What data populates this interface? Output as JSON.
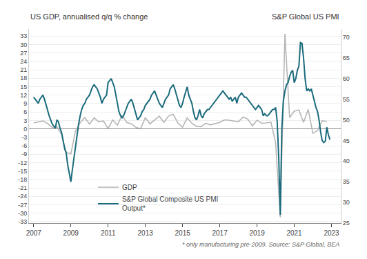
{
  "chart_data": {
    "type": "line",
    "ylabel": "US GDP, annualised q/q % change",
    "y2label": "S&P Global US PMI",
    "annotations": [
      "* only manufacturing pre-2009. Source: S&P Global, BEA"
    ],
    "xlim": [
      2006.75,
      2023.5
    ],
    "xticks": [
      2007,
      2009,
      2011,
      2013,
      2015,
      2017,
      2019,
      2021,
      2023
    ],
    "ylim": [
      -33.5,
      35.5
    ],
    "yticks": [
      -33,
      -30,
      -27,
      -24,
      -21,
      -18,
      -15,
      -12,
      -9,
      -6,
      -3,
      0,
      3,
      6,
      9,
      12,
      15,
      18,
      21,
      24,
      27,
      30,
      33
    ],
    "y2lim": [
      25,
      72
    ],
    "y2ticks": [
      25,
      30,
      35,
      40,
      45,
      50,
      55,
      60,
      65,
      70
    ],
    "grid": true,
    "legend": "lower left",
    "series": [
      {
        "name": "GDP",
        "color": "#b5b5b5",
        "x": [
          2007.0,
          2007.25,
          2007.5,
          2007.75,
          2008.0,
          2008.25,
          2008.5,
          2008.75,
          2009.0,
          2009.25,
          2009.5,
          2009.75,
          2010.0,
          2010.25,
          2010.5,
          2010.75,
          2011.0,
          2011.25,
          2011.5,
          2011.75,
          2012.0,
          2012.25,
          2012.5,
          2012.75,
          2013.0,
          2013.25,
          2013.5,
          2013.75,
          2014.0,
          2014.25,
          2014.5,
          2014.75,
          2015.0,
          2015.25,
          2015.5,
          2015.75,
          2016.0,
          2016.25,
          2016.5,
          2016.75,
          2017.0,
          2017.25,
          2017.5,
          2017.75,
          2018.0,
          2018.25,
          2018.5,
          2018.75,
          2019.0,
          2019.25,
          2019.5,
          2019.75,
          2020.0,
          2020.25,
          2020.5,
          2020.75,
          2021.0,
          2021.25,
          2021.5,
          2021.75,
          2022.0,
          2022.25,
          2022.5,
          2022.75
        ],
        "values": [
          2.1,
          2.5,
          2.8,
          1.9,
          0.5,
          0.7,
          -2.0,
          -8.4,
          -8.9,
          -0.7,
          2.2,
          4.0,
          1.7,
          3.9,
          2.5,
          2.8,
          0.1,
          3.2,
          1.3,
          4.9,
          2.3,
          1.8,
          0.5,
          0.1,
          4.0,
          1.8,
          3.2,
          4.5,
          2.3,
          4.6,
          5.2,
          2.1,
          0.6,
          3.9,
          2.0,
          0.9,
          0.8,
          2.0,
          1.4,
          1.9,
          2.3,
          3.2,
          3.1,
          2.8,
          2.5,
          4.2,
          3.5,
          1.1,
          3.1,
          2.0,
          2.1,
          2.4,
          -5.0,
          -31.4,
          33.8,
          4.0,
          6.3,
          6.7,
          2.3,
          6.9,
          -1.6,
          -0.6,
          2.9,
          2.6
        ]
      },
      {
        "name": "S&P Global Composite US PMI\nOutput*",
        "color": "#1a6b7c",
        "axis": "y2",
        "x": [
          2007.0,
          2007.083,
          2007.167,
          2007.25,
          2007.333,
          2007.417,
          2007.5,
          2007.583,
          2007.667,
          2007.75,
          2007.833,
          2007.917,
          2008.0,
          2008.083,
          2008.167,
          2008.25,
          2008.333,
          2008.417,
          2008.5,
          2008.583,
          2008.667,
          2008.75,
          2008.833,
          2008.917,
          2009.0,
          2009.083,
          2009.167,
          2009.25,
          2009.333,
          2009.417,
          2009.5,
          2009.583,
          2009.667,
          2009.75,
          2009.833,
          2009.917,
          2010.0,
          2010.083,
          2010.167,
          2010.25,
          2010.333,
          2010.417,
          2010.5,
          2010.583,
          2010.667,
          2010.75,
          2010.833,
          2010.917,
          2011.0,
          2011.083,
          2011.167,
          2011.25,
          2011.333,
          2011.417,
          2011.5,
          2011.583,
          2011.667,
          2011.75,
          2011.833,
          2011.917,
          2012.0,
          2012.083,
          2012.167,
          2012.25,
          2012.333,
          2012.417,
          2012.5,
          2012.583,
          2012.667,
          2012.75,
          2012.833,
          2012.917,
          2013.0,
          2013.083,
          2013.167,
          2013.25,
          2013.333,
          2013.417,
          2013.5,
          2013.583,
          2013.667,
          2013.75,
          2013.833,
          2013.917,
          2014.0,
          2014.083,
          2014.167,
          2014.25,
          2014.333,
          2014.417,
          2014.5,
          2014.583,
          2014.667,
          2014.75,
          2014.833,
          2014.917,
          2015.0,
          2015.083,
          2015.167,
          2015.25,
          2015.333,
          2015.417,
          2015.5,
          2015.583,
          2015.667,
          2015.75,
          2015.833,
          2015.917,
          2016.0,
          2016.083,
          2016.167,
          2016.25,
          2016.333,
          2016.417,
          2016.5,
          2016.583,
          2016.667,
          2016.75,
          2016.833,
          2016.917,
          2017.0,
          2017.083,
          2017.167,
          2017.25,
          2017.333,
          2017.417,
          2017.5,
          2017.583,
          2017.667,
          2017.75,
          2017.833,
          2017.917,
          2018.0,
          2018.083,
          2018.167,
          2018.25,
          2018.333,
          2018.417,
          2018.5,
          2018.583,
          2018.667,
          2018.75,
          2018.833,
          2018.917,
          2019.0,
          2019.083,
          2019.167,
          2019.25,
          2019.333,
          2019.417,
          2019.5,
          2019.583,
          2019.667,
          2019.75,
          2019.833,
          2019.917,
          2020.0,
          2020.083,
          2020.167,
          2020.25,
          2020.333,
          2020.417,
          2020.5,
          2020.583,
          2020.667,
          2020.75,
          2020.833,
          2020.917,
          2021.0,
          2021.083,
          2021.167,
          2021.25,
          2021.333,
          2021.417,
          2021.5,
          2021.583,
          2021.667,
          2021.75,
          2021.833,
          2021.917,
          2022.0,
          2022.083,
          2022.167,
          2022.25,
          2022.333,
          2022.417,
          2022.5,
          2022.583,
          2022.667,
          2022.75,
          2022.833,
          2022.917
        ],
        "values": [
          55.5,
          55.0,
          54.5,
          54.0,
          55.0,
          55.5,
          56.0,
          55.0,
          53.5,
          52.5,
          51.0,
          50.0,
          49.0,
          48.5,
          48.0,
          50.0,
          49.5,
          48.0,
          47.0,
          45.0,
          43.0,
          42.0,
          39.0,
          37.0,
          35.0,
          38.0,
          41.0,
          44.0,
          46.5,
          49.0,
          51.0,
          52.5,
          53.5,
          54.0,
          55.0,
          55.5,
          56.0,
          57.0,
          58.0,
          58.5,
          58.0,
          57.5,
          56.5,
          55.5,
          54.0,
          55.0,
          55.5,
          56.0,
          59.0,
          59.5,
          60.0,
          59.0,
          58.0,
          56.0,
          54.0,
          52.0,
          51.0,
          50.5,
          51.0,
          52.0,
          53.0,
          54.0,
          54.5,
          55.0,
          54.0,
          52.5,
          51.0,
          50.0,
          50.5,
          51.0,
          52.0,
          52.5,
          53.5,
          54.0,
          54.5,
          55.0,
          56.0,
          56.5,
          57.0,
          56.0,
          55.0,
          54.0,
          53.5,
          53.0,
          54.0,
          55.0,
          55.5,
          56.0,
          57.5,
          58.0,
          58.5,
          57.5,
          56.0,
          55.0,
          53.5,
          53.0,
          54.0,
          55.5,
          57.0,
          58.0,
          56.0,
          55.0,
          54.0,
          52.0,
          50.5,
          50.0,
          51.0,
          52.5,
          51.0,
          50.5,
          51.5,
          52.0,
          52.5,
          52.5,
          53.0,
          53.5,
          54.0,
          54.5,
          55.0,
          55.5,
          56.0,
          56.5,
          57.0,
          56.5,
          56.0,
          55.5,
          55.0,
          55.5,
          54.5,
          55.0,
          55.5,
          54.0,
          55.5,
          56.0,
          56.5,
          56.0,
          55.5,
          55.5,
          55.0,
          54.5,
          54.0,
          53.5,
          53.0,
          52.5,
          53.0,
          53.5,
          53.0,
          52.5,
          51.0,
          51.5,
          51.0,
          51.0,
          51.5,
          52.0,
          52.5,
          52.5,
          53.0,
          49.6,
          40.9,
          27.0,
          47.9,
          54.6,
          57.0,
          58.5,
          59.0,
          60.5,
          61.5,
          62.0,
          59.0,
          60.0,
          62.0,
          63.0,
          68.7,
          68.5,
          65.0,
          60.0,
          57.0,
          57.5,
          57.0,
          57.5,
          56.0,
          55.0,
          53.0,
          52.0,
          50.0,
          47.0,
          45.0,
          44.5,
          44.8,
          48.2,
          46.4,
          45.2
        ]
      }
    ]
  }
}
